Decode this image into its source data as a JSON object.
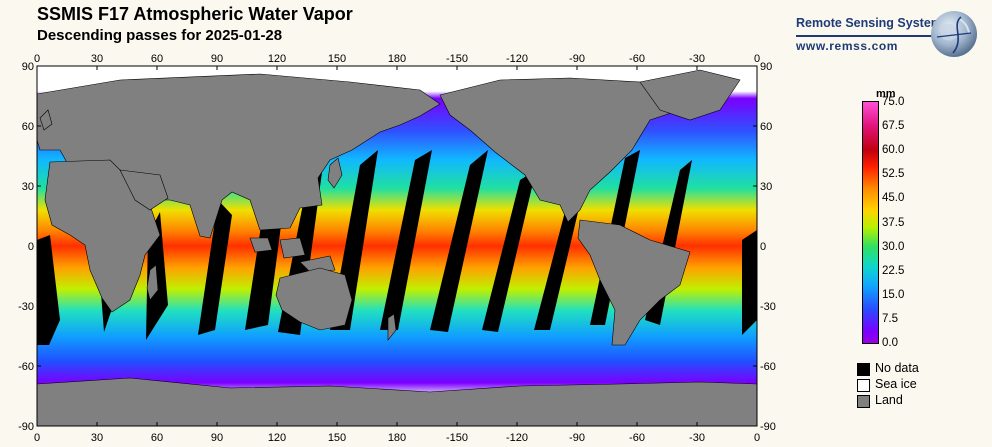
{
  "header": {
    "title": "SSMIS F17 Atmospheric Water Vapor",
    "subtitle": "Descending passes for 2025-01-28"
  },
  "brand": {
    "name": "Remote Sensing Systems",
    "url": "www.remss.com",
    "logo_icon": "globe-logo-icon"
  },
  "map": {
    "lon_ticks": [
      "0",
      "30",
      "60",
      "90",
      "120",
      "150",
      "180",
      "-150",
      "-120",
      "-90",
      "-60",
      "-30",
      "0"
    ],
    "lat_ticks": [
      "90",
      "60",
      "30",
      "0",
      "-30",
      "-60",
      "-90"
    ],
    "colors": {
      "land": "#808080",
      "no_data": "#000000",
      "sea_ice": "#ffffff",
      "dry": "#8a00ff",
      "moist": "#ff3000"
    }
  },
  "colorbar": {
    "unit": "mm",
    "labels": [
      "75.0",
      "67.5",
      "60.0",
      "52.5",
      "45.0",
      "37.5",
      "30.0",
      "22.5",
      "15.0",
      "7.5",
      "0.0"
    ],
    "min": 0.0,
    "max": 75.0
  },
  "legend": {
    "items": [
      {
        "label": "No data",
        "color": "#000000"
      },
      {
        "label": "Sea ice",
        "color": "#ffffff"
      },
      {
        "label": "Land",
        "color": "#808080"
      }
    ]
  }
}
